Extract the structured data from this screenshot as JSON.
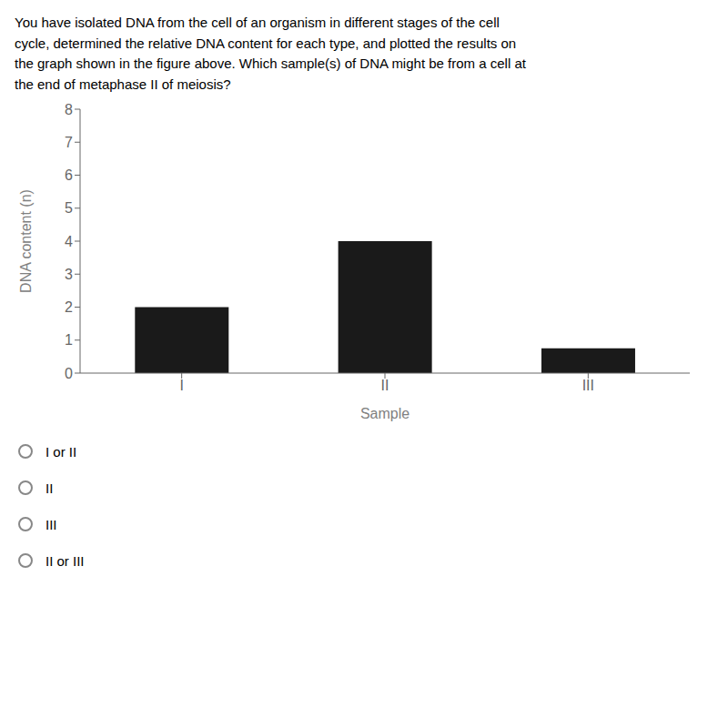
{
  "chart_data": {
    "type": "bar",
    "title": "You have isolated DNA from the cell of an organism in different stages of the cell\ncycle, determined the relative DNA content for each type, and plotted the results on\nthe graph shown in the figure above. Which sample(s) of DNA might be from a cell at\nthe end of metaphase II of meiosis?",
    "xlabel": "Sample",
    "ylabel": "DNA content (n)",
    "categories": [
      "I",
      "II",
      "III"
    ],
    "values": [
      2,
      4,
      0.75
    ],
    "color": "#1a1a1a",
    "ylim": [
      0,
      8
    ],
    "yticks": [
      0,
      1,
      2,
      3,
      4,
      5,
      6,
      7,
      8
    ],
    "grid": false,
    "annotations": [
      "I or II",
      "II",
      "III",
      "II or III"
    ]
  }
}
